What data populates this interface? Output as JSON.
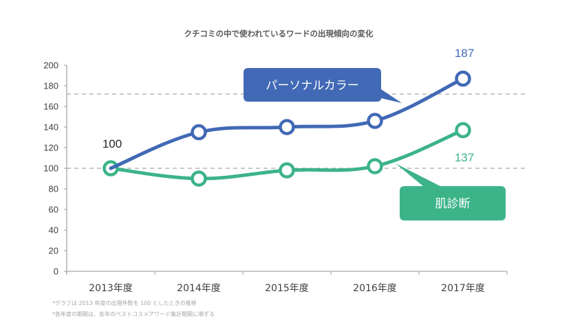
{
  "chart_data": {
    "type": "line",
    "title": "クチコミの中で使われているワードの出現傾向の変化",
    "categories": [
      "2013年度",
      "2014年度",
      "2015年度",
      "2016年度",
      "2017年度"
    ],
    "series": [
      {
        "name": "パーソナルカラー",
        "values": [
          100,
          135,
          140,
          146,
          187
        ],
        "color": "#4169b5"
      },
      {
        "name": "肌診断",
        "values": [
          100,
          90,
          98,
          102,
          137
        ],
        "color": "#3cb389"
      }
    ],
    "ylim": [
      0,
      200
    ],
    "yticks": [
      "0",
      "20",
      "40",
      "60",
      "80",
      "100",
      "120",
      "140",
      "160",
      "180",
      "200"
    ],
    "reference_lines": [
      100,
      172
    ],
    "data_labels": {
      "start": "100",
      "personal_color_end": "187",
      "skin_end": "137"
    },
    "xlabel": "",
    "ylabel": "",
    "grid": false,
    "notes": [
      "*グラフは 2013 年度の出現件数を 100 としたときの推移",
      "*各年度の期間は、各年のベストコスメアワード集計期間に順ずる"
    ]
  }
}
